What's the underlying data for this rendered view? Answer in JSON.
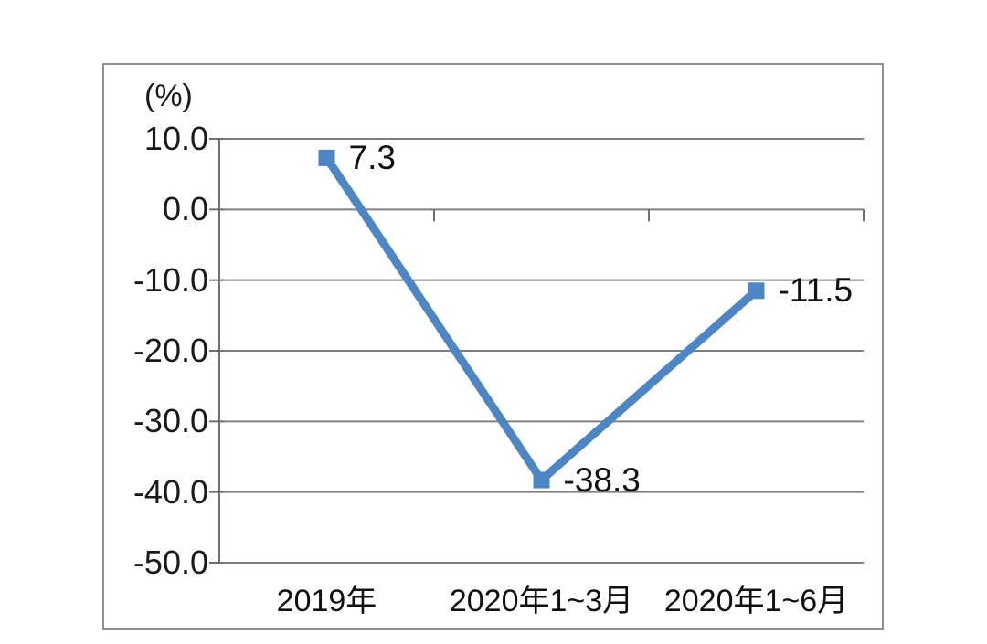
{
  "chart_data": {
    "type": "line",
    "title": "",
    "ylabel": "(%)",
    "xlabel": "",
    "categories": [
      "2019年",
      "2020年1~3月",
      "2020年1~6月"
    ],
    "values": [
      7.3,
      -38.3,
      -11.5
    ],
    "labels": [
      "7.3",
      "-38.3",
      "-11.5"
    ],
    "yticks": [
      "10.0",
      "0.0",
      "-10.0",
      "-20.0",
      "-30.0",
      "-40.0",
      "-50.0"
    ],
    "ylim": [
      -50,
      10
    ],
    "grid": "horizontal",
    "legend_position": "none",
    "marker": "square",
    "colors": {
      "line": "#4D86C4",
      "marker": "#4D86C4",
      "grid": "#808080",
      "axis": "#707070",
      "text": "#1a1a1a",
      "frame_border": "#8f8f8f"
    }
  }
}
